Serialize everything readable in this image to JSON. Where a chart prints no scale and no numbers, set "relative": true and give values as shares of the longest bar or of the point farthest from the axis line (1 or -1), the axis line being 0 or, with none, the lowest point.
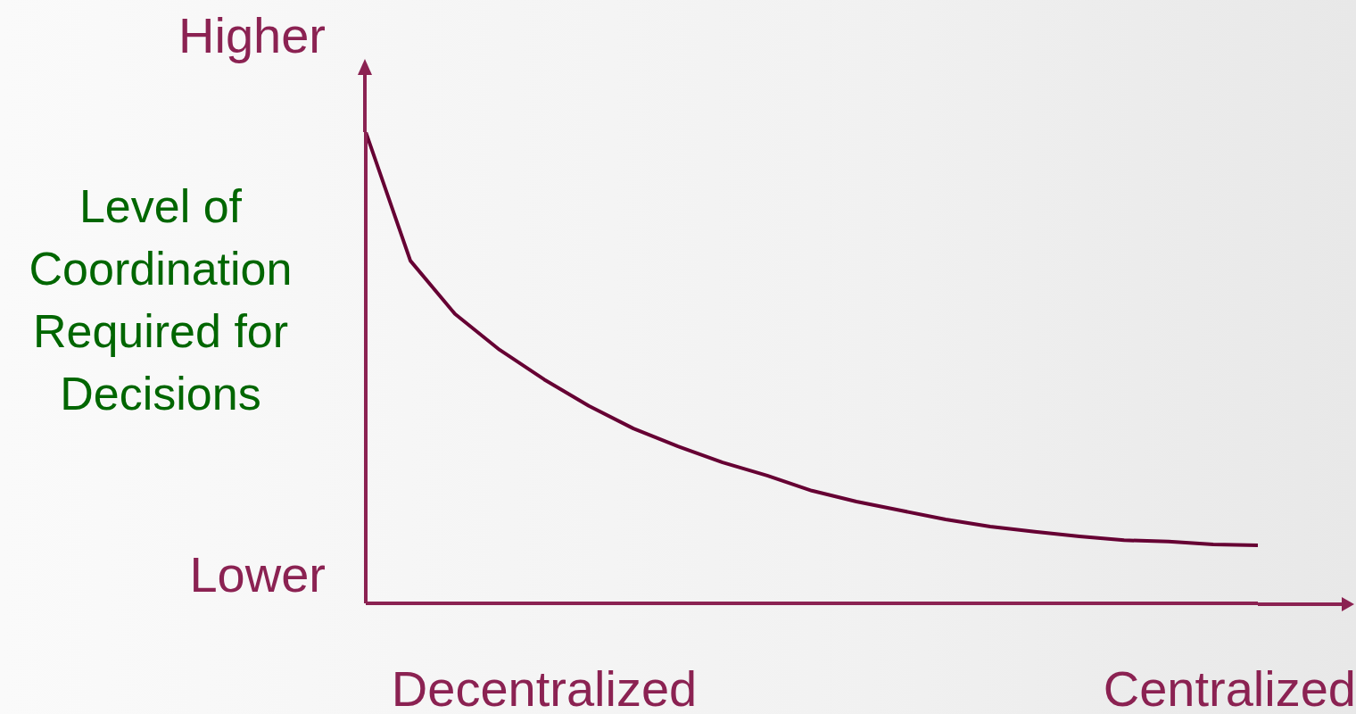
{
  "chart_data": {
    "type": "line",
    "relative": true,
    "ylabel": "Level of Coordination Required for Decisions",
    "annotations": [
      "Higher",
      "Lower",
      "Decentralized",
      "Centralized"
    ],
    "categories": [
      null,
      null,
      null,
      null,
      null,
      null,
      null,
      null,
      null,
      null,
      null,
      null,
      null,
      null,
      null,
      null,
      null,
      null,
      null,
      null,
      null
    ],
    "series": [
      {
        "color": "#660033",
        "values": [
          1.0,
          0.727,
          0.614,
          0.538,
          0.475,
          0.419,
          0.371,
          0.333,
          0.299,
          0.271,
          0.239,
          0.216,
          0.197,
          0.178,
          0.163,
          0.152,
          0.142,
          0.134,
          0.131,
          0.125,
          0.123
        ]
      }
    ],
    "grid": false,
    "legend": false,
    "marker": "none",
    "line_style": "solid"
  }
}
